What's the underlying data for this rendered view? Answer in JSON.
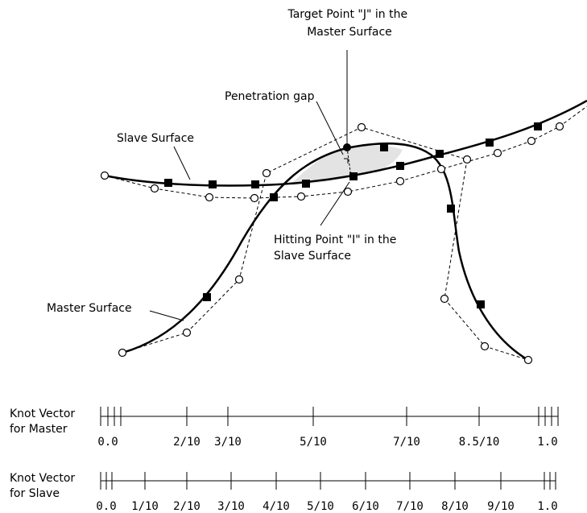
{
  "labels": {
    "target_point": [
      "Target Point \"J\" in the",
      "Master Surface"
    ],
    "penetration_gap": "Penetration gap",
    "slave_surface": "Slave Surface",
    "hitting_point": [
      "Hitting Point \"I\" in the",
      "Slave Surface"
    ],
    "master_surface": "Master Surface"
  },
  "knot_vectors": {
    "master": {
      "caption": [
        "Knot Vector",
        "for Master"
      ],
      "ticks": [
        "0.0",
        "2/10",
        "3/10",
        "5/10",
        "7/10",
        "8.5/10",
        "1.0"
      ]
    },
    "slave": {
      "caption": [
        "Knot Vector",
        "for Slave"
      ],
      "ticks": [
        "0.0",
        "1/10",
        "2/10",
        "3/10",
        "4/10",
        "5/10",
        "6/10",
        "7/10",
        "8/10",
        "9/10",
        "1.0"
      ]
    }
  }
}
